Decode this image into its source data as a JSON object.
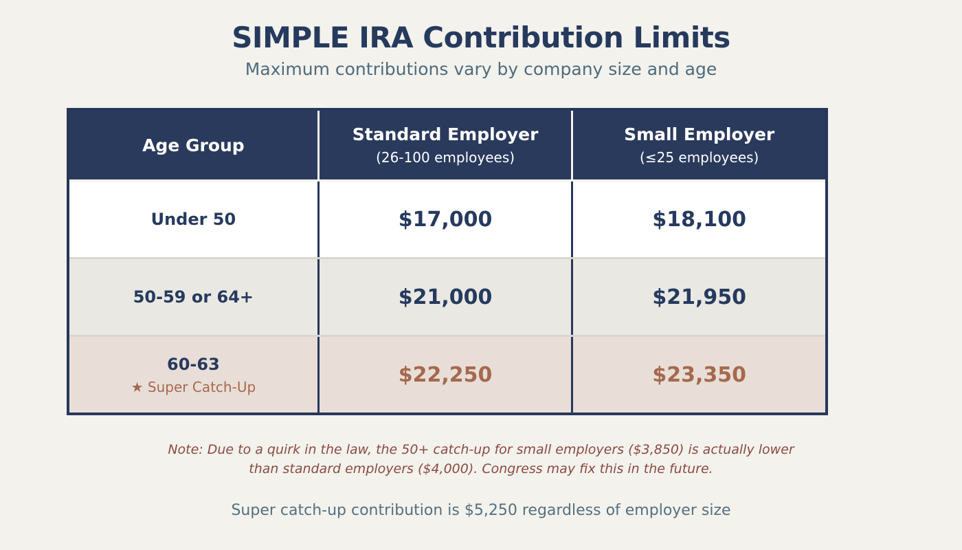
{
  "chart_data": {
    "type": "table",
    "title": "SIMPLE IRA Contribution Limits",
    "subtitle": "Maximum contributions vary by company size and age",
    "columns": [
      {
        "label": "Age Group",
        "sublabel": ""
      },
      {
        "label": "Standard Employer",
        "sublabel": "(26-100 employees)"
      },
      {
        "label": "Small Employer",
        "sublabel": "(≤25 employees)"
      }
    ],
    "rows": [
      {
        "age_group": "Under 50",
        "standard_employer": "$17,000",
        "small_employer": "$18,100",
        "highlight": false
      },
      {
        "age_group": "50-59 or 64+",
        "standard_employer": "$21,000",
        "small_employer": "$21,950",
        "highlight": false
      },
      {
        "age_group": "60-63",
        "badge_icon": "★",
        "badge": "Super Catch-Up",
        "standard_employer": "$22,250",
        "small_employer": "$23,350",
        "highlight": true
      }
    ],
    "notes": {
      "quirk_note": "Note: Due to a quirk in the law, the 50+ catch-up for small employers ($3,850) is actually lower than standard employers ($4,000). Congress may fix this in the future.",
      "super_catchup_note": "Super catch-up contribution is $5,250 regardless of employer size"
    },
    "legend_position": "none",
    "grid": false
  },
  "colors": {
    "page_background": "#f3f2ec",
    "header_background": "#2a3a5c",
    "navy_text": "#263a5e",
    "accent_sienna": "#a5694e",
    "note_brick": "#8b4a43",
    "slate_text": "#4e6b7e",
    "row_alt_background": "#e9e8e3",
    "row_highlight_background": "#e8ded7",
    "table_border": "#27375a"
  }
}
